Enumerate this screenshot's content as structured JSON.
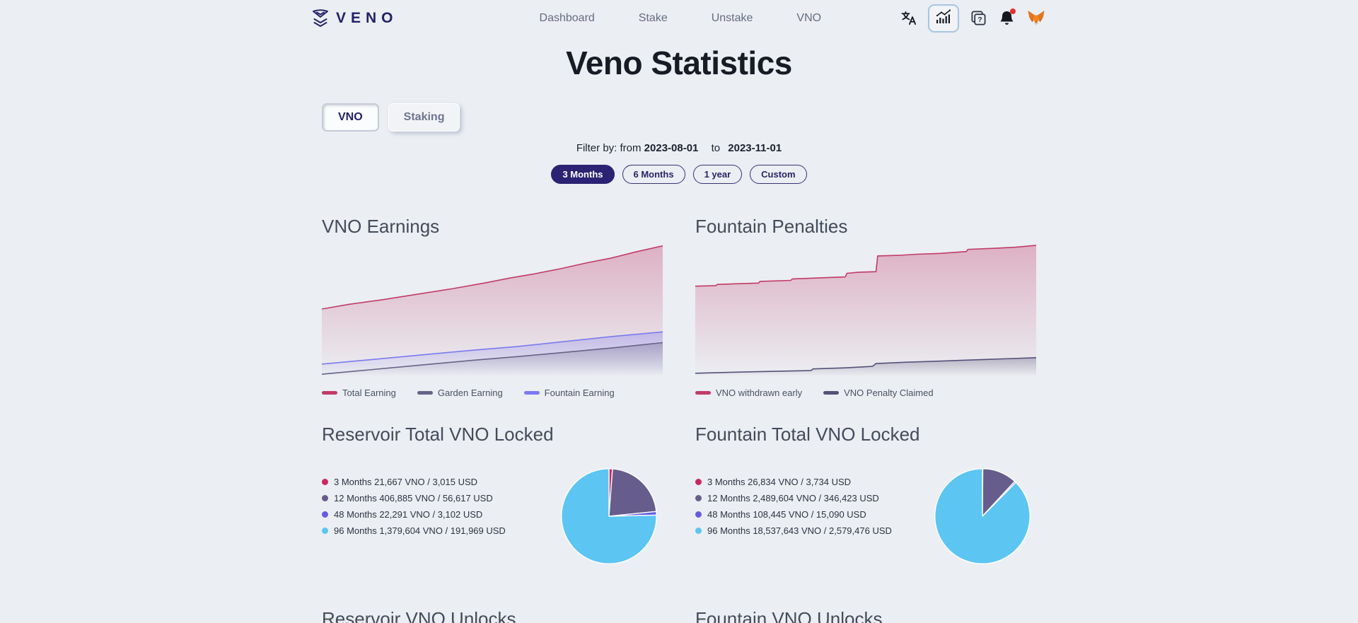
{
  "nav": {
    "brand": "VENO",
    "links": [
      {
        "label": "Dashboard"
      },
      {
        "label": "Stake"
      },
      {
        "label": "Unstake"
      },
      {
        "label": "VNO"
      }
    ],
    "icons": [
      "translate-icon",
      "stats-icon",
      "docs-icon",
      "bell-icon",
      "metamask-fox-icon"
    ]
  },
  "page": {
    "title": "Veno Statistics"
  },
  "tabs": [
    {
      "label": "VNO",
      "active": true
    },
    {
      "label": "Staking",
      "active": false
    }
  ],
  "filter": {
    "label": "Filter by: from",
    "from": "2023-08-01",
    "to_label": "to",
    "to": "2023-11-01"
  },
  "range_buttons": [
    {
      "label": "3 Months",
      "active": true
    },
    {
      "label": "6 Months",
      "active": false
    },
    {
      "label": "1 year",
      "active": false
    },
    {
      "label": "Custom",
      "active": false
    }
  ],
  "colors": {
    "background": "#ebeef2",
    "accent_navy": "#2c2274",
    "crimson": "#c23b68",
    "slate": "#676387",
    "indigo_blue": "#7b7af0",
    "dark_slate": "#565178",
    "pie_purple": "#675d8c",
    "pie_indigo": "#655ce0",
    "pie_sky": "#5cc5f2",
    "pie_crimson": "#c9295f",
    "active_icon_border": "#a7c4e6",
    "notification_red": "#e03131"
  },
  "chart_data": [
    {
      "type": "area",
      "title": "VNO Earnings",
      "x_range": [
        "2023-08-01",
        "2023-11-01"
      ],
      "axes": "hidden",
      "legend_position": "bottom",
      "series": [
        {
          "name": "Total Earning",
          "color": "#c23b68",
          "points": [
            [
              0,
              50
            ],
            [
              8,
              53.5
            ],
            [
              18,
              57
            ],
            [
              28,
              61
            ],
            [
              38,
              65
            ],
            [
              48,
              69.5
            ],
            [
              55,
              73
            ],
            [
              62,
              76
            ],
            [
              70,
              80
            ],
            [
              78,
              84.5
            ],
            [
              85,
              88
            ],
            [
              92,
              92.5
            ],
            [
              100,
              97
            ]
          ]
        },
        {
          "name": "Fountain Earning",
          "color": "#7b7af0",
          "points": [
            [
              0,
              9
            ],
            [
              15,
              12.5
            ],
            [
              30,
              16
            ],
            [
              45,
              19.5
            ],
            [
              57,
              22
            ],
            [
              70,
              25.5
            ],
            [
              85,
              29.5
            ],
            [
              100,
              33
            ]
          ]
        },
        {
          "name": "Garden Earning",
          "color": "#676387",
          "points": [
            [
              0,
              1.5
            ],
            [
              15,
              5
            ],
            [
              30,
              8.5
            ],
            [
              45,
              12
            ],
            [
              57,
              14.5
            ],
            [
              70,
              17.5
            ],
            [
              85,
              21
            ],
            [
              100,
              25
            ]
          ]
        }
      ],
      "legend": [
        {
          "label": "Total Earning",
          "color": "#c23b68"
        },
        {
          "label": "Garden Earning",
          "color": "#676387"
        },
        {
          "label": "Fountain Earning",
          "color": "#7b7af0"
        }
      ]
    },
    {
      "type": "area",
      "title": "Fountain Penalties",
      "x_range": [
        "2023-08-01",
        "2023-11-01"
      ],
      "axes": "hidden",
      "legend_position": "bottom",
      "series": [
        {
          "name": "VNO withdrawn early",
          "color": "#c23b68",
          "points": [
            [
              0,
              67
            ],
            [
              6,
              67.4
            ],
            [
              6.5,
              68.3
            ],
            [
              12,
              68.8
            ],
            [
              18.5,
              69.3
            ],
            [
              19,
              70.6
            ],
            [
              28,
              71.3
            ],
            [
              28.5,
              72.4
            ],
            [
              38,
              73.3
            ],
            [
              44,
              73.9
            ],
            [
              44.5,
              76.6
            ],
            [
              48,
              77.4
            ],
            [
              53,
              77.8
            ],
            [
              53.5,
              89.5
            ],
            [
              60,
              90
            ],
            [
              65,
              90.8
            ],
            [
              72,
              91.4
            ],
            [
              79.5,
              92.8
            ],
            [
              80,
              94.4
            ],
            [
              88,
              95.2
            ],
            [
              94,
              96
            ],
            [
              100,
              97.4
            ]
          ]
        },
        {
          "name": "VNO Penalty Claimed",
          "color": "#565178",
          "points": [
            [
              0,
              2.2
            ],
            [
              15,
              3.2
            ],
            [
              34,
              4.2
            ],
            [
              34.5,
              5.4
            ],
            [
              44,
              6.2
            ],
            [
              52,
              7.3
            ],
            [
              53,
              9.4
            ],
            [
              62,
              10.4
            ],
            [
              70,
              11.1
            ],
            [
              80,
              12
            ],
            [
              90,
              12.9
            ],
            [
              100,
              13.8
            ]
          ]
        }
      ],
      "legend": [
        {
          "label": "VNO withdrawn early",
          "color": "#c23b68"
        },
        {
          "label": "VNO Penalty Claimed",
          "color": "#565178"
        }
      ]
    },
    {
      "type": "pie",
      "title": "Reservoir Total VNO Locked",
      "slices": [
        {
          "label": "3 Months",
          "vno": 21667,
          "usd": 3015,
          "text": "3 Months 21,667 VNO / 3,015 USD",
          "color": "#c9295f"
        },
        {
          "label": "12 Months",
          "vno": 406885,
          "usd": 56617,
          "text": "12 Months 406,885 VNO / 56,617 USD",
          "color": "#675d8c"
        },
        {
          "label": "48 Months",
          "vno": 22291,
          "usd": 3102,
          "text": "48 Months 22,291 VNO / 3,102 USD",
          "color": "#655ce0"
        },
        {
          "label": "96 Months",
          "vno": 1379604,
          "usd": 191969,
          "text": "96 Months 1,379,604 VNO / 191,969 USD",
          "color": "#5cc5f2"
        }
      ]
    },
    {
      "type": "pie",
      "title": "Fountain Total VNO Locked",
      "slices": [
        {
          "label": "3 Months",
          "vno": 26834,
          "usd": 3734,
          "text": "3 Months 26,834 VNO / 3,734 USD",
          "color": "#c9295f"
        },
        {
          "label": "12 Months",
          "vno": 2489604,
          "usd": 346423,
          "text": "12 Months 2,489,604 VNO / 346,423 USD",
          "color": "#675d8c"
        },
        {
          "label": "48 Months",
          "vno": 108445,
          "usd": 15090,
          "text": "48 Months 108,445 VNO / 15,090 USD",
          "color": "#655ce0"
        },
        {
          "label": "96 Months",
          "vno": 18537643,
          "usd": 2579476,
          "text": "96 Months 18,537,643 VNO / 2,579,476 USD",
          "color": "#5cc5f2"
        }
      ]
    }
  ],
  "unlock_sections": [
    {
      "title": "Reservoir VNO Unlocks"
    },
    {
      "title": "Fountain VNO Unlocks"
    }
  ]
}
